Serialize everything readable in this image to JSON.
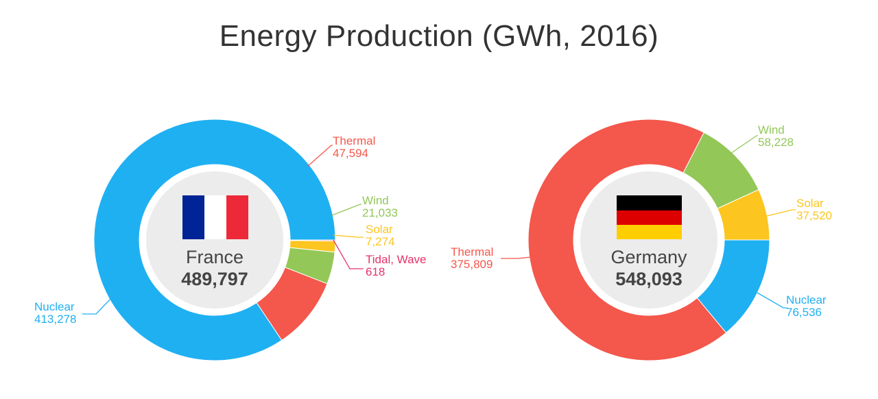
{
  "title": "Energy Production (GWh, 2016)",
  "colors": {
    "Nuclear": "#1fb0f2",
    "Thermal": "#f4574b",
    "Wind": "#93c757",
    "Solar": "#fcc51f",
    "Tidal, Wave": "#e8316a"
  },
  "chart_data": [
    {
      "type": "pie",
      "country": "France",
      "total": "489,797",
      "flag": "france-flag",
      "slices": [
        {
          "label": "Nuclear",
          "value": 413278,
          "display": "413,278"
        },
        {
          "label": "Thermal",
          "value": 47594,
          "display": "47,594"
        },
        {
          "label": "Wind",
          "value": 21033,
          "display": "21,033"
        },
        {
          "label": "Solar",
          "value": 7274,
          "display": "7,274"
        },
        {
          "label": "Tidal, Wave",
          "value": 618,
          "display": "618"
        }
      ]
    },
    {
      "type": "pie",
      "country": "Germany",
      "total": "548,093",
      "flag": "germany-flag",
      "slices": [
        {
          "label": "Nuclear",
          "value": 76536,
          "display": "76,536"
        },
        {
          "label": "Thermal",
          "value": 375809,
          "display": "375,809"
        },
        {
          "label": "Wind",
          "value": 58228,
          "display": "58,228"
        },
        {
          "label": "Solar",
          "value": 37520,
          "display": "37,520"
        }
      ]
    }
  ]
}
